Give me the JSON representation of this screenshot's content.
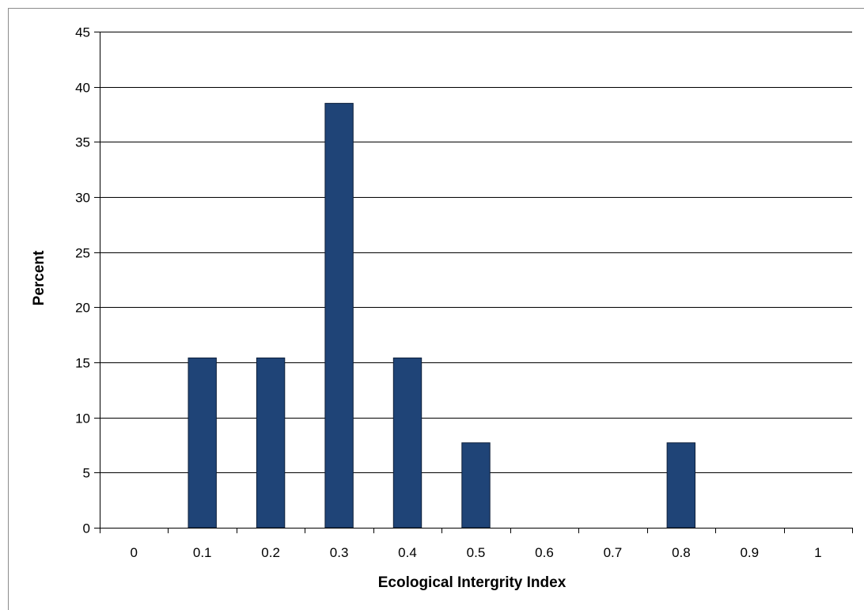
{
  "chart_data": {
    "type": "bar",
    "title": "",
    "xlabel": "Ecological Intergrity Index",
    "ylabel": "Percent",
    "categories": [
      "0",
      "0.1",
      "0.2",
      "0.3",
      "0.4",
      "0.5",
      "0.6",
      "0.7",
      "0.8",
      "0.9",
      "1"
    ],
    "values": [
      0,
      15.4,
      15.4,
      38.5,
      15.4,
      7.7,
      0,
      0,
      7.7,
      0,
      0
    ],
    "ylim": [
      0,
      45
    ],
    "yticks": [
      0,
      5,
      10,
      15,
      20,
      25,
      30,
      35,
      40,
      45
    ],
    "grid": "horizontal",
    "legend": "none",
    "colors": {
      "bar_fill": "#1f4477",
      "bar_stroke": "#0d1f3a",
      "grid": "#000000",
      "axis": "#000000"
    }
  }
}
